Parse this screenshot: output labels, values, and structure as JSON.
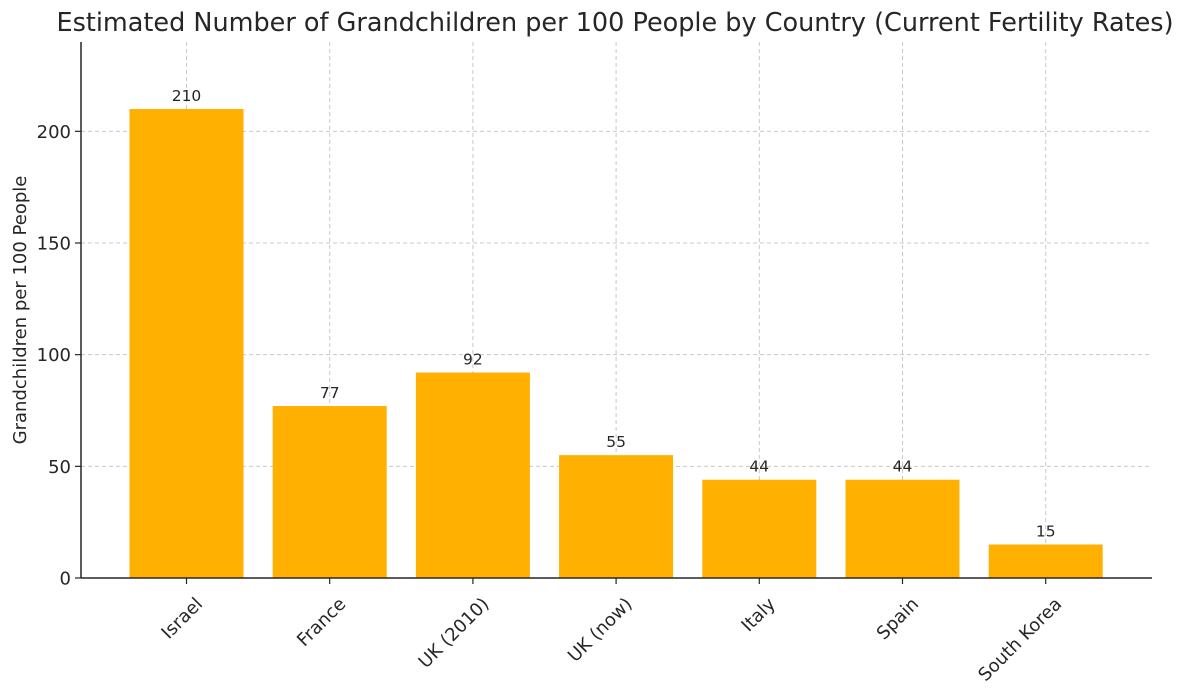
{
  "chart_data": {
    "type": "bar",
    "title": "Estimated Number of Grandchildren per 100 People by Country (Current Fertility Rates)",
    "xlabel": "",
    "ylabel": "Grandchildren per 100 People",
    "categories": [
      "Israel",
      "France",
      "UK (2010)",
      "UK (now)",
      "Italy",
      "Spain",
      "South Korea"
    ],
    "values": [
      210,
      77,
      92,
      55,
      44,
      44,
      15
    ],
    "data_labels": [
      "210",
      "77",
      "92",
      "55",
      "44",
      "44",
      "15"
    ],
    "ylim": [
      0,
      240
    ],
    "yticks": [
      0,
      50,
      100,
      150,
      200
    ],
    "ytick_labels": [
      "0",
      "50",
      "100",
      "150",
      "200"
    ],
    "grid": true,
    "bar_color": "#FFB000"
  }
}
